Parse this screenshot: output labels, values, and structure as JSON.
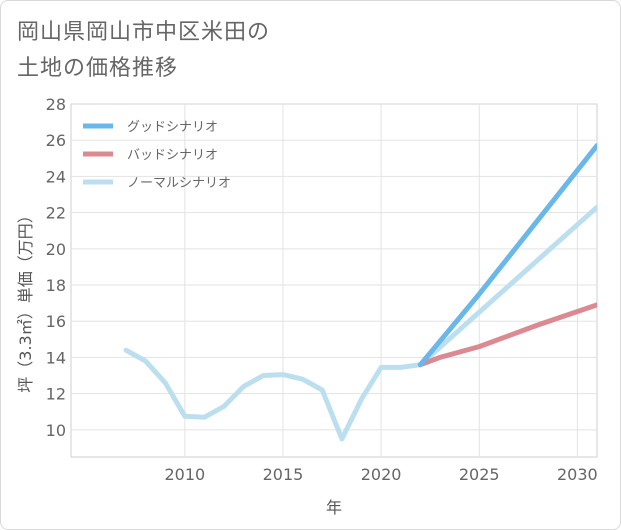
{
  "title_line1": "岡山県岡山市中区米田の",
  "title_line2": "土地の価格推移",
  "chart_data": {
    "type": "line",
    "title": "岡山県岡山市中区米田の土地の価格推移",
    "xlabel": "年",
    "ylabel": "坪（3.3㎡）単価（万円）",
    "xlim": [
      2004.2,
      2031
    ],
    "ylim": [
      8.5,
      28
    ],
    "x_ticks": [
      2010,
      2015,
      2020,
      2025,
      2030
    ],
    "y_ticks": [
      10,
      12,
      14,
      16,
      18,
      20,
      22,
      24,
      26,
      28
    ],
    "grid": true,
    "legend_position": "top-left",
    "series": [
      {
        "name": "グッドシナリオ",
        "color": "#6ab8ea",
        "x": [
          2022,
          2025,
          2031
        ],
        "values": [
          13.6,
          17.5,
          25.7
        ]
      },
      {
        "name": "バッドシナリオ",
        "color": "#dc8a91",
        "x": [
          2022,
          2023,
          2025,
          2028,
          2031
        ],
        "values": [
          13.6,
          14.0,
          14.6,
          15.8,
          16.9
        ]
      },
      {
        "name": "ノーマルシナリオ",
        "color": "#bcdff0",
        "x": [
          2007,
          2008,
          2009,
          2010,
          2011,
          2012,
          2013,
          2014,
          2015,
          2016,
          2017,
          2018,
          2019,
          2020,
          2021,
          2022,
          2025,
          2031
        ],
        "values": [
          14.4,
          13.8,
          12.6,
          10.75,
          10.7,
          11.3,
          12.4,
          13.0,
          13.05,
          12.8,
          12.2,
          9.5,
          11.7,
          13.45,
          13.45,
          13.6,
          16.5,
          22.3
        ]
      }
    ]
  }
}
